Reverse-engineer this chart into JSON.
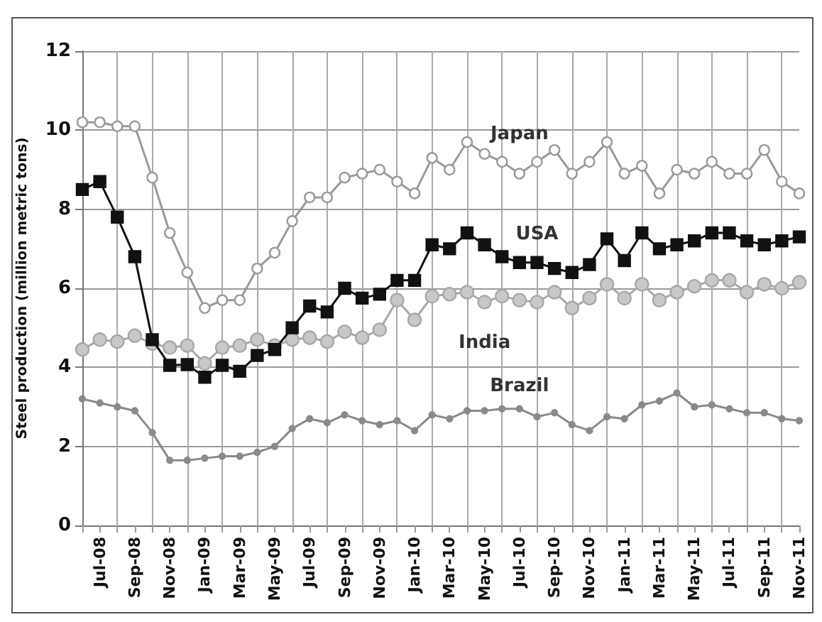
{
  "chart_data": {
    "type": "line",
    "ylabel": "Steel production (million metric tons)",
    "categories": [
      null,
      "Jul-08",
      null,
      "Sep-08",
      null,
      "Nov-08",
      null,
      "Jan-09",
      null,
      "Mar-09",
      null,
      "May-09",
      null,
      "Jul-09",
      null,
      "Sep-09",
      null,
      "Nov-09",
      null,
      "Jan-10",
      null,
      "Mar-10",
      null,
      "May-10",
      null,
      "Jul-10",
      null,
      "Sep-10",
      null,
      "Nov-10",
      null,
      "Jan-11",
      null,
      "Mar-11",
      null,
      "May-11",
      null,
      "Jul-11",
      null,
      "Sep-11",
      null,
      "Nov-11"
    ],
    "series": [
      {
        "name": "Japan",
        "color": "#9a9a9a",
        "marker": "circle",
        "values": [
          10.2,
          10.2,
          10.1,
          10.1,
          8.8,
          7.4,
          6.4,
          5.5,
          5.7,
          5.7,
          6.5,
          6.9,
          7.7,
          8.3,
          8.3,
          8.8,
          8.9,
          9.0,
          8.7,
          8.4,
          9.3,
          9.0,
          9.7,
          9.4,
          9.2,
          8.9,
          9.2,
          9.5,
          8.9,
          9.2,
          9.7,
          8.9,
          9.1,
          8.4,
          9.0,
          8.9,
          9.2,
          8.9,
          8.9,
          9.5,
          8.7,
          8.4
        ]
      },
      {
        "name": "USA",
        "color": "#111111",
        "marker": "square",
        "values": [
          8.5,
          8.7,
          7.8,
          6.8,
          4.7,
          4.05,
          4.07,
          3.75,
          4.05,
          3.9,
          4.3,
          4.45,
          5.0,
          5.55,
          5.4,
          6.0,
          5.75,
          5.85,
          6.2,
          6.2,
          7.1,
          7.0,
          7.4,
          7.1,
          6.8,
          6.65,
          6.65,
          6.5,
          6.4,
          6.6,
          7.25,
          6.7,
          7.4,
          7.0,
          7.1,
          7.2,
          7.4,
          7.4,
          7.2,
          7.1,
          7.2,
          7.3
        ]
      },
      {
        "name": "India",
        "color": "#a8a8a8",
        "marker": "circle",
        "values": [
          4.45,
          4.7,
          4.65,
          4.8,
          4.6,
          4.5,
          4.55,
          4.1,
          4.5,
          4.55,
          4.7,
          4.55,
          4.7,
          4.75,
          4.65,
          4.9,
          4.75,
          4.95,
          5.7,
          5.2,
          5.8,
          5.85,
          5.9,
          5.65,
          5.8,
          5.7,
          5.65,
          5.9,
          5.5,
          5.75,
          6.1,
          5.75,
          6.1,
          5.7,
          5.9,
          6.05,
          6.2,
          6.2,
          5.9,
          6.1,
          6.0,
          6.15
        ]
      },
      {
        "name": "Brazil",
        "color": "#8a8a8a",
        "marker": "circle",
        "values": [
          3.2,
          3.1,
          3.0,
          2.9,
          2.35,
          1.65,
          1.65,
          1.7,
          1.75,
          1.75,
          1.85,
          2.0,
          2.45,
          2.7,
          2.6,
          2.8,
          2.65,
          2.55,
          2.65,
          2.4,
          2.8,
          2.7,
          2.9,
          2.9,
          2.95,
          2.95,
          2.75,
          2.85,
          2.55,
          2.4,
          2.75,
          2.7,
          3.05,
          3.15,
          3.35,
          3.0,
          3.05,
          2.95,
          2.85,
          2.85,
          2.7,
          2.65
        ]
      }
    ],
    "ylim": [
      0,
      12
    ],
    "yticks": [
      0,
      2,
      4,
      6,
      8,
      10,
      12
    ],
    "grid": true,
    "legend": false,
    "line_style": "solid"
  }
}
